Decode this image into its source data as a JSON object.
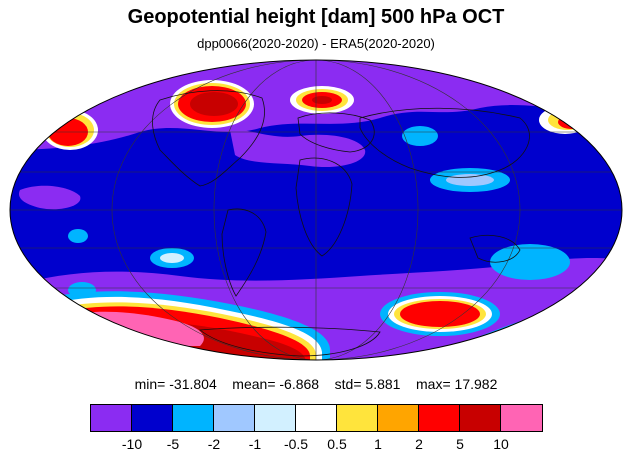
{
  "title": "Geopotential height [dam] 500 hPa OCT",
  "subtitle": "dpp0066(2020-2020) - ERA5(2020-2020)",
  "stats": {
    "min_label": "min=",
    "min": "-31.804",
    "mean_label": "mean=",
    "mean": "-6.868",
    "std_label": "std=",
    "std": "5.881",
    "max_label": "max=",
    "max": "17.982"
  },
  "colorbar": {
    "colors": [
      "#8b2cf2",
      "#0000cd",
      "#00b4ff",
      "#a0c8ff",
      "#d2f0ff",
      "#ffffff",
      "#ffe43c",
      "#ffa500",
      "#ff0000",
      "#c80000",
      "#ff64b4"
    ],
    "labels": [
      "-10",
      "-5",
      "-2",
      "-1",
      "-0.5",
      "0.5",
      "1",
      "2",
      "5",
      "10"
    ]
  },
  "map": {
    "projection": "Mollweide",
    "background_color": "#0000cd"
  }
}
